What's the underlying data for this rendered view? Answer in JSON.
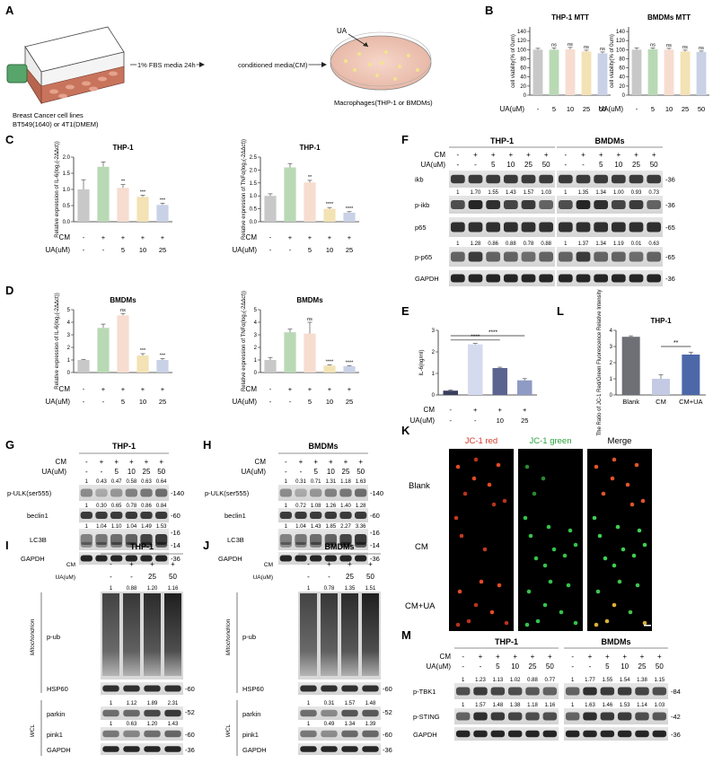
{
  "panels": [
    "A",
    "B",
    "C",
    "D",
    "E",
    "F",
    "G",
    "H",
    "I",
    "J",
    "K",
    "L",
    "M"
  ],
  "panel_a": {
    "arrow1": "1% FBS media 24h",
    "arrow2": "conditioned media(CM)",
    "cells_line1": "Breast Cancer cell lines",
    "cells_line2": "BT549(1640) or  4T1(DMEM)",
    "ua": "UA",
    "macrophages": "Macrophages(THP-1 or BMDMs)"
  },
  "colors": {
    "c1": "#c8c8c8",
    "c2": "#b9d9b5",
    "c3": "#f6ddd0",
    "c4": "#f3e2b4",
    "c5": "#c9d1e6",
    "e_dark": "#3b3f5e",
    "e_mid": "#5b6491",
    "l_blue": "#4d68a9"
  },
  "chart_data": [
    {
      "panel": "B",
      "type": "bar",
      "title": "THP-1  MTT",
      "ylabel": "cell viability(% of 0um)",
      "xrow_label": "UA(uM)",
      "categories": [
        "-",
        "5",
        "10",
        "25",
        "50"
      ],
      "values": [
        100,
        100,
        101,
        96,
        92
      ],
      "errors": [
        3,
        4,
        4,
        3,
        3
      ],
      "sig": [
        "",
        "ns",
        "ns",
        "ns",
        "ns"
      ],
      "ylim": [
        0,
        150
      ],
      "yticks": [
        "0",
        "20",
        "40",
        "60",
        "80",
        "100",
        "120",
        "140"
      ]
    },
    {
      "panel": "B",
      "type": "bar",
      "title": "BMDMs MTT",
      "ylabel": "cell viability(% of 0um)",
      "xrow_label": "UA(uM)",
      "categories": [
        "-",
        "5",
        "10",
        "25",
        "50"
      ],
      "values": [
        100,
        101,
        100,
        96,
        95
      ],
      "errors": [
        4,
        3,
        3,
        3,
        2
      ],
      "sig": [
        "",
        "ns",
        "ns",
        "ns",
        "ns"
      ],
      "ylim": [
        0,
        150
      ],
      "yticks": [
        "0",
        "20",
        "40",
        "60",
        "80",
        "100",
        "120",
        "140"
      ]
    },
    {
      "panel": "C",
      "type": "bar",
      "title": "THP-1",
      "ylabel": "Relative expression of IL-6(log₂(-2ΔΔct))",
      "cm": [
        "-",
        "+",
        "+",
        "+",
        "+"
      ],
      "ua": [
        "-",
        "-",
        "5",
        "10",
        "25"
      ],
      "values": [
        1.0,
        1.7,
        1.05,
        0.77,
        0.52
      ],
      "errors": [
        0.3,
        0.15,
        0.1,
        0.05,
        0.05
      ],
      "sig": [
        "",
        "",
        "**",
        "***",
        "***"
      ],
      "ylim": [
        0,
        2.0
      ],
      "yticks": [
        "0.0",
        "0.5",
        "1.0",
        "1.5",
        "2.0"
      ]
    },
    {
      "panel": "C",
      "type": "bar",
      "title": "THP-1",
      "ylabel": "Relative expression of TNFα(log₂(-2ΔΔct))",
      "cm": [
        "-",
        "+",
        "+",
        "+",
        "+"
      ],
      "ua": [
        "-",
        "-",
        "5",
        "10",
        "25"
      ],
      "values": [
        1.0,
        2.1,
        1.52,
        0.5,
        0.35
      ],
      "errors": [
        0.08,
        0.15,
        0.08,
        0.05,
        0.04
      ],
      "sig": [
        "",
        "",
        "**",
        "****",
        "****"
      ],
      "ylim": [
        0,
        2.5
      ],
      "yticks": [
        "0.0",
        "0.5",
        "1.0",
        "1.5",
        "2.0",
        "2.5"
      ]
    },
    {
      "panel": "D",
      "type": "bar",
      "title": "BMDMs",
      "ylabel": "Relative expression of IL-6(log₂(-2ΔΔct))",
      "cm": [
        "-",
        "+",
        "+",
        "+",
        "+"
      ],
      "ua": [
        "-",
        "-",
        "5",
        "10",
        "25"
      ],
      "values": [
        1.0,
        3.55,
        4.55,
        1.35,
        1.0
      ],
      "errors": [
        0.05,
        0.3,
        0.15,
        0.15,
        0.1
      ],
      "sig": [
        "",
        "",
        "ns",
        "***",
        "***"
      ],
      "ylim": [
        0,
        5
      ],
      "yticks": [
        "0",
        "1",
        "2",
        "3",
        "4",
        "5"
      ]
    },
    {
      "panel": "D",
      "type": "bar",
      "title": "BMDMs",
      "ylabel": "Relative expression of TNFα(log₂(-2ΔΔct))",
      "cm": [
        "-",
        "+",
        "+",
        "+",
        "+"
      ],
      "ua": [
        "-",
        "-",
        "5",
        "10",
        "25"
      ],
      "values": [
        1.0,
        3.2,
        3.1,
        0.55,
        0.5
      ],
      "errors": [
        0.2,
        0.25,
        0.9,
        0.05,
        0.05
      ],
      "sig": [
        "",
        "",
        "ns",
        "****",
        "****"
      ],
      "ylim": [
        0,
        5
      ],
      "yticks": [
        "0",
        "1",
        "2",
        "3",
        "4",
        "5"
      ]
    },
    {
      "panel": "E",
      "type": "bar",
      "title": "",
      "ylabel": "IL-6(ng/ml)",
      "cm": [
        "-",
        "+",
        "+",
        "+"
      ],
      "ua": [
        "-",
        "-",
        "10",
        "25"
      ],
      "values": [
        0.2,
        2.35,
        1.25,
        0.68
      ],
      "errors": [
        0.03,
        0.04,
        0.04,
        0.08
      ],
      "sig": [
        "****",
        "****"
      ],
      "ylim": [
        0,
        3
      ],
      "yticks": [
        "0",
        "1",
        "2",
        "3"
      ]
    },
    {
      "panel": "L",
      "type": "bar",
      "title": "THP-1",
      "ylabel": "The Ratio of JC-1 Red/Green Fluorescence Relative Intensity",
      "categories": [
        "Blank",
        "CM",
        "CM+UA"
      ],
      "values": [
        3.6,
        1.0,
        2.5
      ],
      "errors": [
        0.06,
        0.25,
        0.15
      ],
      "sig": [
        "**"
      ],
      "ylim": [
        0,
        4
      ],
      "yticks": [
        "0",
        "1",
        "2",
        "3",
        "4"
      ]
    }
  ],
  "blot_f": {
    "titles": [
      "THP-1",
      "BMDMs"
    ],
    "row_cm": "CM",
    "row_ua": "UA(uM)",
    "cm": [
      "-",
      "+",
      "+",
      "+",
      "+",
      "+"
    ],
    "ua": [
      "-",
      "-",
      "5",
      "10",
      "25",
      "50"
    ],
    "bands": [
      "ikb",
      "p-ikb",
      "p65",
      "p-p65",
      "GAPDH"
    ],
    "kda": [
      "36",
      "36",
      "65",
      "65",
      "36"
    ],
    "q_ikb_t": [
      "1",
      "1.70",
      "1.55",
      "1.43",
      "1.57",
      "1.03"
    ],
    "q_ikb_b": [
      "1",
      "1.35",
      "1.34",
      "1.00",
      "0.93",
      "0.73"
    ],
    "q_p65_t": [
      "1",
      "1.28",
      "0.86",
      "0.88",
      "0.78",
      "0.88"
    ],
    "q_p65_b": [
      "1",
      "1.37",
      "1.34",
      "1.19",
      "0.01",
      "0.63"
    ]
  },
  "blot_g": {
    "title": "THP-1",
    "row_cm": "CM",
    "row_ua": "UA(uM)",
    "cm": [
      "-",
      "+",
      "+",
      "+",
      "+",
      "+"
    ],
    "ua": [
      "-",
      "-",
      "5",
      "10",
      "25",
      "50"
    ],
    "bands": [
      "p-ULK(ser555)",
      "beclin1",
      "LC3B",
      "GAPDH"
    ],
    "kda": [
      "140",
      "60",
      "16",
      "14",
      "36"
    ],
    "q1": [
      "1",
      "0.43",
      "0.47",
      "0.58",
      "0.63",
      "0.64"
    ],
    "q2": [
      "1",
      "0.30",
      "0.65",
      "0.78",
      "0.86",
      "0.84"
    ],
    "q3": [
      "1",
      "1.04",
      "1.10",
      "1.04",
      "1.49",
      "1.53"
    ]
  },
  "blot_h": {
    "title": "BMDMs",
    "row_cm": "CM",
    "row_ua": "UA(uM)",
    "cm": [
      "-",
      "+",
      "+",
      "+",
      "+",
      "+"
    ],
    "ua": [
      "-",
      "-",
      "5",
      "10",
      "25",
      "50"
    ],
    "bands": [
      "p-ULK(ser555)",
      "beclin1",
      "LC3B",
      "GAPDH"
    ],
    "kda": [
      "140",
      "60",
      "16",
      "14",
      "36"
    ],
    "q1": [
      "1",
      "0.31",
      "0.71",
      "1.31",
      "1.18",
      "1.63"
    ],
    "q2": [
      "1",
      "0.72",
      "1.08",
      "1.26",
      "1.40",
      "1.28"
    ],
    "q3": [
      "1",
      "1.04",
      "1.43",
      "1.85",
      "2.27",
      "3.36"
    ]
  },
  "blot_i": {
    "title": "THP-1",
    "row_cm": "CM",
    "row_ua": "UA(uM)",
    "cm": [
      "-",
      "+",
      "+",
      "+"
    ],
    "ua": [
      "-",
      "-",
      "25",
      "50"
    ],
    "bands": [
      "p-ub",
      "HSP60",
      "parkin",
      "pink1",
      "GAPDH"
    ],
    "kda": [
      "60",
      "52",
      "60",
      "36"
    ],
    "side1": "Mitochondrion",
    "side2": "WCL",
    "q1": [
      "1",
      "0.88",
      "1.20",
      "1.16"
    ],
    "q2": [
      "1",
      "1.12",
      "1.89",
      "2.31"
    ],
    "q3": [
      "1",
      "0.63",
      "1.20",
      "1.43"
    ]
  },
  "blot_j": {
    "title": "BMDMs",
    "row_cm": "CM",
    "row_ua": "UA(uM)",
    "cm": [
      "-",
      "+",
      "+",
      "+"
    ],
    "ua": [
      "-",
      "-",
      "25",
      "50"
    ],
    "bands": [
      "p-ub",
      "HSP60",
      "parkin",
      "pink1",
      "GAPDH"
    ],
    "kda": [
      "60",
      "52",
      "60",
      "36"
    ],
    "side1": "Mitochondrion",
    "side2": "WCL",
    "q1": [
      "1",
      "0.78",
      "1.35",
      "1.51"
    ],
    "q2": [
      "1",
      "0.31",
      "1.57",
      "1.48"
    ],
    "q3": [
      "1",
      "0.49",
      "1.34",
      "1.39"
    ]
  },
  "panel_k": {
    "cols": [
      "JC-1 red",
      "JC-1 green",
      "Merge"
    ],
    "rows": [
      "Blank",
      "CM",
      "CM+UA"
    ]
  },
  "blot_m": {
    "titles": [
      "THP-1",
      "BMDMs"
    ],
    "row_cm": "CM",
    "row_ua": "UA(uM)",
    "cm": [
      "-",
      "+",
      "+",
      "+",
      "+",
      "+"
    ],
    "ua": [
      "-",
      "-",
      "5",
      "10",
      "25",
      "50"
    ],
    "bands": [
      "p-TBK1",
      "p-STING",
      "GAPDH"
    ],
    "kda": [
      "84",
      "42",
      "36"
    ],
    "q1_t": [
      "1",
      "1.23",
      "1.13",
      "1.02",
      "0.88",
      "0.77"
    ],
    "q1_b": [
      "1",
      "1.77",
      "1.55",
      "1.54",
      "1.38",
      "1.15"
    ],
    "q2_t": [
      "1",
      "1.57",
      "1.48",
      "1.38",
      "1.18",
      "1.16"
    ],
    "q2_b": [
      "1",
      "1.63",
      "1.46",
      "1.53",
      "1.14",
      "1.03"
    ]
  }
}
